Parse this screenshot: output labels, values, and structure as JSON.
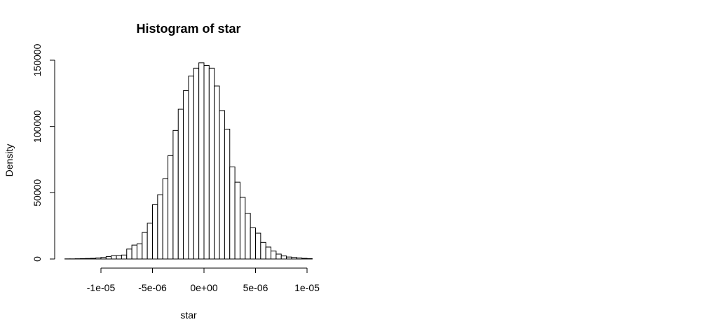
{
  "chart_data": {
    "type": "bar",
    "title": "Histogram of star",
    "xlabel": "star",
    "ylabel": "Density",
    "xlim": [
      -1.35e-05,
      1.05e-05
    ],
    "ylim": [
      0,
      150000
    ],
    "x_ticks": [
      {
        "value": -1e-05,
        "label": "-1e-05"
      },
      {
        "value": -5e-06,
        "label": "-5e-06"
      },
      {
        "value": 0,
        "label": "0e+00"
      },
      {
        "value": 5e-06,
        "label": "5e-06"
      },
      {
        "value": 1e-05,
        "label": "1e-05"
      }
    ],
    "y_ticks": [
      {
        "value": 0,
        "label": "0"
      },
      {
        "value": 50000,
        "label": "50000"
      },
      {
        "value": 100000,
        "label": "100000"
      },
      {
        "value": 150000,
        "label": "150000"
      }
    ],
    "bin_width": 5e-07,
    "bins_start": [
      -1.35e-05,
      -1.3e-05,
      -1.25e-05,
      -1.2e-05,
      -1.15e-05,
      -1.1e-05,
      -1.05e-05,
      -1e-05,
      -9.5e-06,
      -9e-06,
      -8.5e-06,
      -8e-06,
      -7.5e-06,
      -7e-06,
      -6.5e-06,
      -6e-06,
      -5.5e-06,
      -5e-06,
      -4.5e-06,
      -4e-06,
      -3.5e-06,
      -3e-06,
      -2.5e-06,
      -2e-06,
      -1.5e-06,
      -1e-06,
      -5e-07,
      0,
      5e-07,
      1e-06,
      1.5e-06,
      2e-06,
      2.5e-06,
      3e-06,
      3.5e-06,
      4e-06,
      4.5e-06,
      5e-06,
      5.5e-06,
      6e-06,
      6.5e-06,
      7e-06,
      7.5e-06,
      8e-06,
      8.5e-06,
      9e-06,
      9.5e-06,
      1e-05
    ],
    "values": [
      100,
      100,
      200,
      300,
      400,
      500,
      800,
      1200,
      1800,
      2500,
      2500,
      3000,
      7500,
      10500,
      11500,
      20000,
      27000,
      41000,
      48500,
      60500,
      78000,
      97000,
      113000,
      127000,
      138000,
      144000,
      148000,
      146000,
      144000,
      130500,
      112000,
      98000,
      69500,
      58000,
      46500,
      34500,
      23500,
      19500,
      12500,
      9000,
      6000,
      3700,
      2300,
      1500,
      1200,
      800,
      500,
      300
    ]
  }
}
